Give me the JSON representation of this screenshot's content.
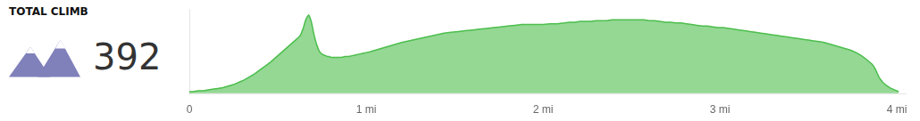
{
  "chart_data": {
    "type": "area",
    "title": "TOTAL CLIMB",
    "annotations": [
      "392"
    ],
    "color": "#4cbe4c",
    "x": [
      0.0,
      0.02,
      0.05,
      0.08,
      0.1,
      0.13,
      0.16,
      0.19,
      0.22,
      0.25,
      0.28,
      0.31,
      0.34,
      0.37,
      0.4,
      0.43,
      0.46,
      0.49,
      0.52,
      0.54,
      0.56,
      0.58,
      0.6,
      0.62,
      0.63,
      0.635,
      0.64,
      0.645,
      0.65,
      0.655,
      0.66,
      0.665,
      0.67,
      0.675,
      0.68,
      0.685,
      0.69,
      0.695,
      0.7,
      0.71,
      0.72,
      0.73,
      0.74,
      0.75,
      0.76,
      0.77,
      0.78,
      0.79,
      0.8,
      0.82,
      0.84,
      0.86,
      0.88,
      0.9,
      0.92,
      0.94,
      0.96,
      0.98,
      1.0,
      1.02,
      1.05,
      1.08,
      1.11,
      1.14,
      1.17,
      1.2,
      1.24,
      1.28,
      1.32,
      1.36,
      1.4,
      1.44,
      1.48,
      1.52,
      1.56,
      1.6,
      1.64,
      1.68,
      1.72,
      1.76,
      1.8,
      1.84,
      1.88,
      1.92,
      1.96,
      2.0,
      2.04,
      2.08,
      2.12,
      2.15,
      2.18,
      2.21,
      2.24,
      2.27,
      2.3,
      2.33,
      2.36,
      2.39,
      2.42,
      2.45,
      2.48,
      2.51,
      2.54,
      2.57,
      2.6,
      2.63,
      2.66,
      2.69,
      2.72,
      2.75,
      2.78,
      2.81,
      2.84,
      2.87,
      2.9,
      2.93,
      2.96,
      2.99,
      3.02,
      3.05,
      3.08,
      3.11,
      3.14,
      3.17,
      3.2,
      3.23,
      3.26,
      3.29,
      3.32,
      3.35,
      3.38,
      3.41,
      3.44,
      3.47,
      3.5,
      3.53,
      3.56,
      3.59,
      3.62,
      3.65,
      3.68,
      3.71,
      3.74,
      3.77,
      3.8,
      3.83,
      3.86,
      3.87,
      3.88,
      3.89,
      3.9,
      3.92,
      3.94,
      3.96,
      3.98,
      4.0,
      4.01
    ],
    "values": [
      0.02,
      0.02,
      0.03,
      0.03,
      0.04,
      0.05,
      0.06,
      0.07,
      0.09,
      0.11,
      0.14,
      0.17,
      0.21,
      0.25,
      0.3,
      0.35,
      0.4,
      0.46,
      0.52,
      0.56,
      0.6,
      0.64,
      0.68,
      0.72,
      0.75,
      0.78,
      0.81,
      0.84,
      0.88,
      0.92,
      0.95,
      0.97,
      0.99,
      1.0,
      0.98,
      0.95,
      0.91,
      0.86,
      0.8,
      0.7,
      0.62,
      0.56,
      0.52,
      0.5,
      0.49,
      0.48,
      0.47,
      0.47,
      0.46,
      0.46,
      0.46,
      0.46,
      0.47,
      0.47,
      0.48,
      0.49,
      0.5,
      0.51,
      0.52,
      0.53,
      0.55,
      0.57,
      0.59,
      0.61,
      0.63,
      0.65,
      0.67,
      0.69,
      0.71,
      0.73,
      0.75,
      0.77,
      0.78,
      0.79,
      0.8,
      0.81,
      0.82,
      0.83,
      0.84,
      0.85,
      0.86,
      0.87,
      0.88,
      0.88,
      0.88,
      0.88,
      0.89,
      0.89,
      0.9,
      0.91,
      0.91,
      0.92,
      0.92,
      0.92,
      0.93,
      0.93,
      0.93,
      0.94,
      0.94,
      0.94,
      0.94,
      0.94,
      0.94,
      0.94,
      0.93,
      0.93,
      0.92,
      0.91,
      0.91,
      0.9,
      0.9,
      0.89,
      0.88,
      0.87,
      0.86,
      0.86,
      0.85,
      0.84,
      0.84,
      0.83,
      0.82,
      0.81,
      0.8,
      0.79,
      0.78,
      0.77,
      0.76,
      0.75,
      0.74,
      0.73,
      0.72,
      0.71,
      0.7,
      0.69,
      0.68,
      0.67,
      0.66,
      0.65,
      0.63,
      0.61,
      0.59,
      0.57,
      0.55,
      0.52,
      0.48,
      0.43,
      0.37,
      0.34,
      0.3,
      0.25,
      0.2,
      0.14,
      0.1,
      0.07,
      0.05,
      0.03,
      0.02
    ],
    "xlim": [
      0,
      4.05
    ],
    "xticks": [
      0,
      {
        "value": 1,
        "label": "1 mi"
      },
      {
        "value": 2,
        "label": "2 mi"
      },
      {
        "value": 3,
        "label": "3 mi"
      },
      {
        "value": 4,
        "label": "4 mi"
      }
    ],
    "ylim": [
      -0.01,
      1.08
    ],
    "grid": false,
    "tick_labels": "x"
  }
}
